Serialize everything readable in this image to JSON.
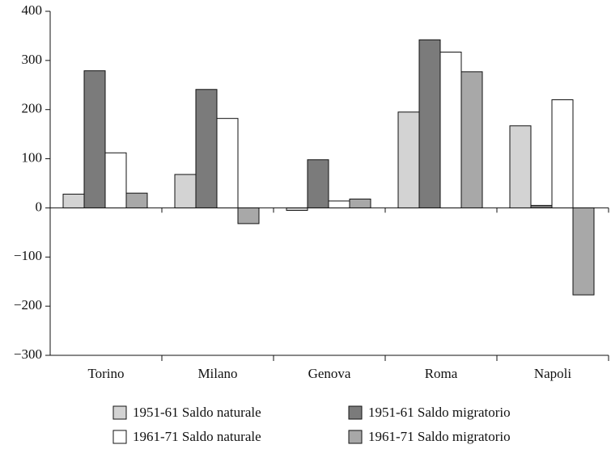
{
  "chart_data": {
    "type": "bar",
    "categories": [
      "Torino",
      "Milano",
      "Genova",
      "Roma",
      "Napoli"
    ],
    "series": [
      {
        "name": "1951-61 Saldo naturale",
        "color": "#d3d3d3",
        "values": [
          28,
          68,
          -5,
          195,
          167
        ]
      },
      {
        "name": "1951-61 Saldo migratorio",
        "color": "#7b7b7b",
        "values": [
          279,
          241,
          98,
          342,
          5
        ]
      },
      {
        "name": "1961-71 Saldo naturale",
        "color": "#ffffff",
        "values": [
          112,
          182,
          14,
          317,
          220
        ]
      },
      {
        "name": "1961-71 Saldo migratorio",
        "color": "#a8a8a8",
        "values": [
          30,
          -32,
          18,
          277,
          -177
        ]
      }
    ],
    "ylim": [
      -300,
      400
    ],
    "yticks": [
      {
        "value": -300,
        "label": "−300"
      },
      {
        "value": -200,
        "label": "−200"
      },
      {
        "value": -100,
        "label": "−100"
      },
      0,
      100,
      200,
      300,
      400
    ],
    "grid": false
  }
}
